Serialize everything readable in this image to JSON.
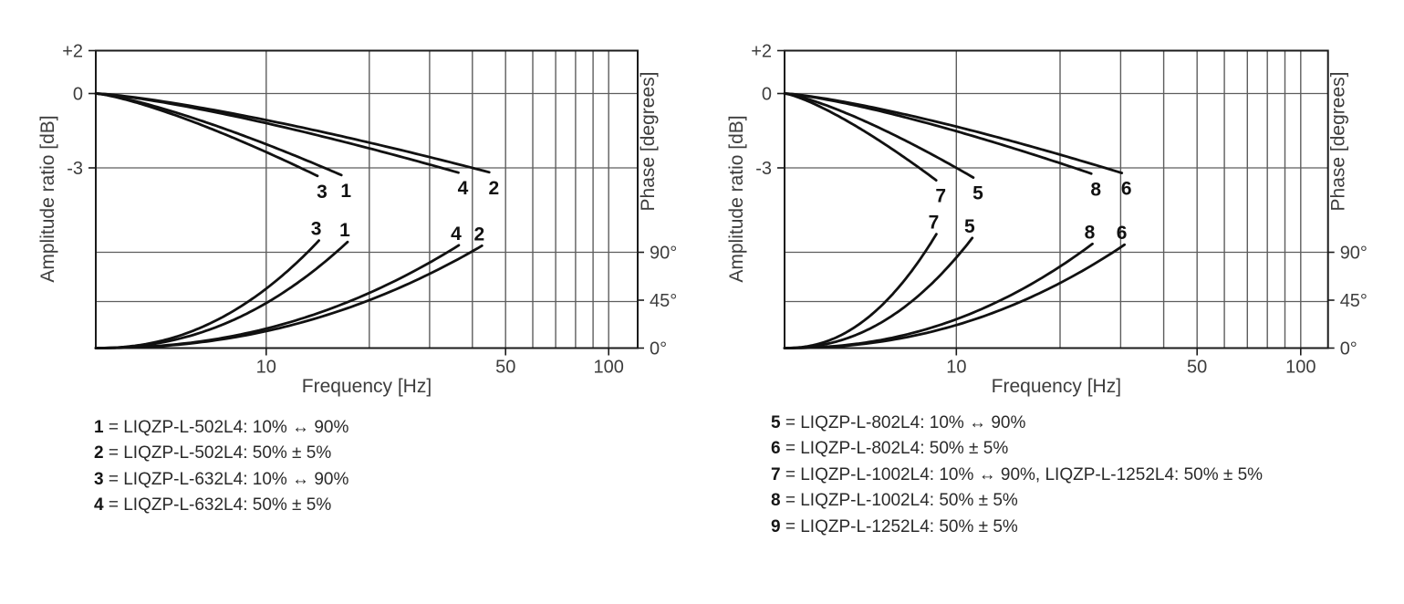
{
  "colors": {
    "background": "#ffffff",
    "curve": "#111111",
    "grid": "#5e5e5e",
    "frame": "#1b1b1b",
    "tick_text": "#3d3d3d",
    "legend_text": "#2a2a2a"
  },
  "chart_data": [
    {
      "id": "left",
      "type": "line",
      "x_axis": {
        "label": "Frequency [Hz]",
        "scale": "log",
        "min_hz": 3.18,
        "max_hz": 121.5,
        "gridlines_hz": [
          10,
          20,
          30,
          40,
          50,
          60,
          70,
          80,
          90,
          100
        ],
        "ticks": [
          {
            "hz": 10,
            "label": "10"
          },
          {
            "hz": 50,
            "label": "50"
          },
          {
            "hz": 100,
            "label": "100"
          }
        ]
      },
      "y_left": {
        "label": "Amplitude ratio [dB]",
        "ticks": [
          {
            "db": 2,
            "label": "+2"
          },
          {
            "db": 0,
            "label": "0"
          },
          {
            "db": -3,
            "label": "-3"
          }
        ]
      },
      "y_right": {
        "label": "Phase [degrees]",
        "ticks": [
          {
            "deg": 90,
            "label": "90°"
          },
          {
            "deg": 45,
            "label": "45°"
          },
          {
            "deg": 0,
            "label": "0°"
          }
        ]
      },
      "curves": [
        {
          "id": "1",
          "f_3db_hz": 14.8,
          "f_90deg_hz": 16.0
        },
        {
          "id": "2",
          "f_3db_hz": 40.0,
          "f_90deg_hz": 39.5
        },
        {
          "id": "3",
          "f_3db_hz": 12.6,
          "f_90deg_hz": 13.2
        },
        {
          "id": "4",
          "f_3db_hz": 32.5,
          "f_90deg_hz": 33.8
        }
      ],
      "legend": [
        {
          "id": "1",
          "separator": " = ",
          "text": "LIQZP-L-502L4: 10% ↔ 90%"
        },
        {
          "id": "2",
          "separator": " = ",
          "text": "LIQZP-L-502L4: 50% ± 5%"
        },
        {
          "id": "3",
          "separator": " = ",
          "text": "LIQZP-L-632L4: 10% ↔ 90%"
        },
        {
          "id": "4",
          "separator": " = ",
          "text": "LIQZP-L-632L4: 50% ± 5%"
        }
      ]
    },
    {
      "id": "right",
      "type": "line",
      "x_axis": {
        "label": "Frequency [Hz]",
        "scale": "log",
        "min_hz": 3.17,
        "max_hz": 120.0,
        "gridlines_hz": [
          10,
          20,
          30,
          40,
          50,
          60,
          70,
          80,
          90,
          100
        ],
        "ticks": [
          {
            "hz": 10,
            "label": "10"
          },
          {
            "hz": 50,
            "label": "50"
          },
          {
            "hz": 100,
            "label": "100"
          }
        ]
      },
      "y_left": {
        "label": "Amplitude ratio [dB]",
        "ticks": [
          {
            "db": 2,
            "label": "+2"
          },
          {
            "db": 0,
            "label": "0"
          },
          {
            "db": -3,
            "label": "-3"
          }
        ]
      },
      "y_right": {
        "label": "Phase [degrees]",
        "ticks": [
          {
            "deg": 90,
            "label": "90°"
          },
          {
            "deg": 45,
            "label": "45°"
          },
          {
            "deg": 0,
            "label": "0°"
          }
        ]
      },
      "curves": [
        {
          "id": "7",
          "f_3db_hz": 7.8,
          "f_90deg_hz": 8.1
        },
        {
          "id": "5",
          "f_3db_hz": 10.0,
          "f_90deg_hz": 10.3
        },
        {
          "id": "8",
          "f_3db_hz": 22.0,
          "f_90deg_hz": 23.0
        },
        {
          "id": "6",
          "f_3db_hz": 27.0,
          "f_90deg_hz": 28.5
        }
      ],
      "legend": [
        {
          "id": "5",
          "separator": " = ",
          "text": "LIQZP-L-802L4: 10% ↔ 90%"
        },
        {
          "id": "6",
          "separator": " = ",
          "text": "LIQZP-L-802L4: 50% ± 5%"
        },
        {
          "id": "7",
          "separator": " = ",
          "text": "LIQZP-L-1002L4: 10% ↔ 90%, LIQZP-L-1252L4: 50% ± 5%"
        },
        {
          "id": "8",
          "separator": " = ",
          "text": "LIQZP-L-1002L4: 50% ± 5%"
        },
        {
          "id": "9",
          "separator": " = ",
          "text": "LIQZP-L-1252L4: 50% ± 5%"
        }
      ]
    }
  ]
}
